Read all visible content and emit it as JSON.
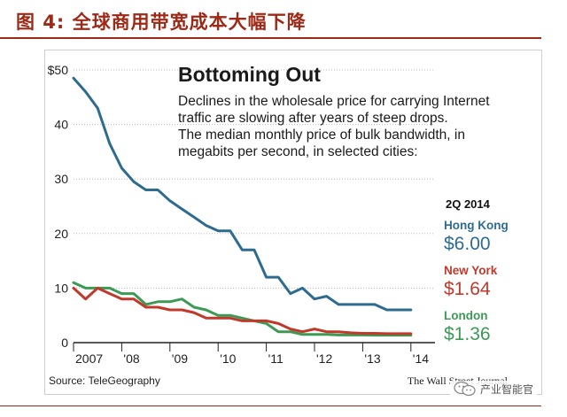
{
  "figure": {
    "caption": "图 4:  全球商用带宽成本大幅下降",
    "watermark": "产业智能官"
  },
  "colors": {
    "caption": "#9c2a17",
    "hong_kong": "#2d6b8f",
    "new_york": "#c0392b",
    "london": "#3c9a55",
    "grid": "#bbbbbb",
    "axis": "#222222"
  },
  "chart_data": {
    "type": "line",
    "title": "Bottoming Out",
    "subtitle": [
      "Declines in the wholesale price for carrying Internet",
      "traffic are slowing after years of steep drops.",
      "The median monthly price of bulk bandwidth, in",
      "megabits per second, in selected cities:"
    ],
    "xlabel": "",
    "ylabel": "",
    "x_ticks": [
      {
        "value": 2007,
        "label": "2007"
      },
      {
        "value": 2008,
        "label": "'08"
      },
      {
        "value": 2009,
        "label": "'09"
      },
      {
        "value": 2010,
        "label": "'10"
      },
      {
        "value": 2011,
        "label": "'11"
      },
      {
        "value": 2012,
        "label": "'12"
      },
      {
        "value": 2013,
        "label": "'13"
      },
      {
        "value": 2014,
        "label": "'14"
      }
    ],
    "y_ticks": [
      {
        "value": 50,
        "label": "$50"
      },
      {
        "value": 40,
        "label": "40"
      },
      {
        "value": 30,
        "label": "30"
      },
      {
        "value": 20,
        "label": "20"
      },
      {
        "value": 10,
        "label": "10"
      },
      {
        "value": 0,
        "label": "0"
      }
    ],
    "xlim": [
      2007,
      2014.5
    ],
    "ylim": [
      0,
      50
    ],
    "grid": true,
    "legend_heading": "2Q 2014",
    "series": [
      {
        "name": "Hong Kong",
        "value_label": "$6.00",
        "color": "#2d6b8f",
        "points": [
          [
            2007,
            48.5
          ],
          [
            2007.25,
            46
          ],
          [
            2007.5,
            43
          ],
          [
            2007.75,
            36.5
          ],
          [
            2008,
            32
          ],
          [
            2008.25,
            29.5
          ],
          [
            2008.5,
            28
          ],
          [
            2008.75,
            28
          ],
          [
            2009,
            26
          ],
          [
            2009.25,
            24.5
          ],
          [
            2009.5,
            23
          ],
          [
            2009.75,
            21.5
          ],
          [
            2010,
            20.5
          ],
          [
            2010.25,
            20.5
          ],
          [
            2010.5,
            17
          ],
          [
            2010.75,
            17
          ],
          [
            2011,
            12
          ],
          [
            2011.25,
            12
          ],
          [
            2011.5,
            9
          ],
          [
            2011.75,
            10
          ],
          [
            2012,
            8
          ],
          [
            2012.25,
            8.5
          ],
          [
            2012.5,
            7
          ],
          [
            2012.75,
            7
          ],
          [
            2013,
            7
          ],
          [
            2013.25,
            7
          ],
          [
            2013.5,
            6
          ],
          [
            2013.75,
            6
          ],
          [
            2014,
            6
          ]
        ]
      },
      {
        "name": "New York",
        "value_label": "$1.64",
        "color": "#c0392b",
        "points": [
          [
            2007,
            10
          ],
          [
            2007.25,
            8
          ],
          [
            2007.5,
            10
          ],
          [
            2007.75,
            9
          ],
          [
            2008,
            8
          ],
          [
            2008.25,
            8
          ],
          [
            2008.5,
            6.5
          ],
          [
            2008.75,
            6.5
          ],
          [
            2009,
            6
          ],
          [
            2009.25,
            6
          ],
          [
            2009.5,
            5.5
          ],
          [
            2009.75,
            4.5
          ],
          [
            2010,
            4.5
          ],
          [
            2010.25,
            4.5
          ],
          [
            2010.5,
            4
          ],
          [
            2010.75,
            4
          ],
          [
            2011,
            4
          ],
          [
            2011.25,
            3.5
          ],
          [
            2011.5,
            2.5
          ],
          [
            2011.75,
            2
          ],
          [
            2012,
            2.5
          ],
          [
            2012.25,
            2
          ],
          [
            2012.5,
            2
          ],
          [
            2012.75,
            1.8
          ],
          [
            2013,
            1.7
          ],
          [
            2013.25,
            1.7
          ],
          [
            2013.5,
            1.64
          ],
          [
            2013.75,
            1.64
          ],
          [
            2014,
            1.64
          ]
        ]
      },
      {
        "name": "London",
        "value_label": "$1.36",
        "color": "#3c9a55",
        "points": [
          [
            2007,
            11
          ],
          [
            2007.25,
            10
          ],
          [
            2007.5,
            10
          ],
          [
            2007.75,
            10
          ],
          [
            2008,
            9
          ],
          [
            2008.25,
            9
          ],
          [
            2008.5,
            7
          ],
          [
            2008.75,
            7.5
          ],
          [
            2009,
            7.5
          ],
          [
            2009.25,
            8
          ],
          [
            2009.5,
            6.5
          ],
          [
            2009.75,
            6
          ],
          [
            2010,
            5
          ],
          [
            2010.25,
            5
          ],
          [
            2010.5,
            4.5
          ],
          [
            2010.75,
            4
          ],
          [
            2011,
            3.5
          ],
          [
            2011.25,
            2
          ],
          [
            2011.5,
            2
          ],
          [
            2011.75,
            1.5
          ],
          [
            2012,
            1.5
          ],
          [
            2012.25,
            1.5
          ],
          [
            2012.5,
            1.4
          ],
          [
            2012.75,
            1.4
          ],
          [
            2013,
            1.4
          ],
          [
            2013.25,
            1.36
          ],
          [
            2013.5,
            1.36
          ],
          [
            2013.75,
            1.36
          ],
          [
            2014,
            1.36
          ]
        ]
      }
    ],
    "source": "Source: TeleGeography",
    "credit": "The Wall Street Journal"
  }
}
